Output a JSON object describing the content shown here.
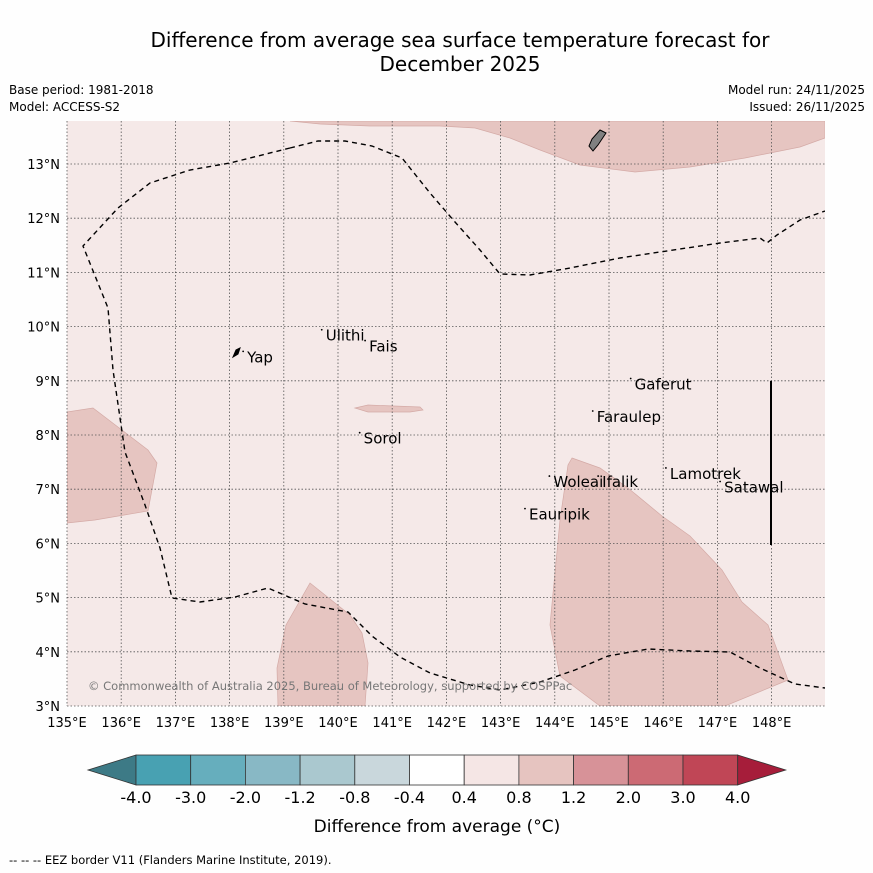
{
  "title_line1": "Difference from average sea surface temperature forecast for",
  "title_line2": "December 2025",
  "meta": {
    "base_period": "Base period: 1981-2018",
    "model": "Model: ACCESS-S2",
    "model_run": "Model run: 24/11/2025",
    "issued": "Issued: 26/11/2025"
  },
  "map": {
    "lon_range": [
      135,
      149
    ],
    "lat_range": [
      3,
      13.8
    ],
    "x_ticks": [
      {
        "lon": 135,
        "label": "135°E"
      },
      {
        "lon": 136,
        "label": "136°E"
      },
      {
        "lon": 137,
        "label": "137°E"
      },
      {
        "lon": 138,
        "label": "138°E"
      },
      {
        "lon": 139,
        "label": "139°E"
      },
      {
        "lon": 140,
        "label": "140°E"
      },
      {
        "lon": 141,
        "label": "141°E"
      },
      {
        "lon": 142,
        "label": "142°E"
      },
      {
        "lon": 143,
        "label": "143°E"
      },
      {
        "lon": 144,
        "label": "144°E"
      },
      {
        "lon": 145,
        "label": "145°E"
      },
      {
        "lon": 146,
        "label": "146°E"
      },
      {
        "lon": 147,
        "label": "147°E"
      },
      {
        "lon": 148,
        "label": "148°E"
      }
    ],
    "y_ticks": [
      {
        "lat": 3,
        "label": "3°N"
      },
      {
        "lat": 4,
        "label": "4°N"
      },
      {
        "lat": 5,
        "label": "5°N"
      },
      {
        "lat": 6,
        "label": "6°N"
      },
      {
        "lat": 7,
        "label": "7°N"
      },
      {
        "lat": 8,
        "label": "8°N"
      },
      {
        "lat": 9,
        "label": "9°N"
      },
      {
        "lat": 10,
        "label": "10°N"
      },
      {
        "lat": 11,
        "label": "11°N"
      },
      {
        "lat": 12,
        "label": "12°N"
      },
      {
        "lat": 13,
        "label": "13°N"
      }
    ],
    "islands": [
      {
        "name": "Yap",
        "lon": 138.25,
        "lat": 9.45
      },
      {
        "name": "Ulithi",
        "lon": 139.7,
        "lat": 9.85
      },
      {
        "name": "Fais",
        "lon": 140.5,
        "lat": 9.65
      },
      {
        "name": "Gaferut",
        "lon": 145.4,
        "lat": 8.95
      },
      {
        "name": "Faraulep",
        "lon": 144.7,
        "lat": 8.35
      },
      {
        "name": "Sorol",
        "lon": 140.4,
        "lat": 7.95
      },
      {
        "name": "Woleai",
        "lon": 143.9,
        "lat": 7.15
      },
      {
        "name": "Ifalik",
        "lon": 144.8,
        "lat": 7.15
      },
      {
        "name": "Lamotrek",
        "lon": 146.05,
        "lat": 7.3
      },
      {
        "name": "Satawal",
        "lon": 147.05,
        "lat": 7.05
      },
      {
        "name": "Eauripik",
        "lon": 143.45,
        "lat": 6.55
      }
    ],
    "copyright": "© Commonwealth of Australia 2025, Bureau of Meteorology, supported by COSPPac"
  },
  "colorbar": {
    "labels": [
      "-4.0",
      "-3.0",
      "-2.0",
      "-1.2",
      "-0.8",
      "-0.4",
      "0.4",
      "0.8",
      "1.2",
      "2.0",
      "3.0",
      "4.0"
    ],
    "colors": [
      "#48a1b2",
      "#66aebd",
      "#88b8c5",
      "#aac8cf",
      "#c9d7dc",
      "#ffffff",
      "#f5e6e5",
      "#e6c4c0",
      "#d79298",
      "#cc6a74",
      "#c04656"
    ],
    "low_extend_color": "#3d7a86",
    "high_extend_color": "#a61d3a",
    "label": "Difference from average (°C)"
  },
  "footer": "-- -- -- EEZ border V11 (Flanders Marine Institute, 2019).",
  "colors": {
    "background_anomaly": "#f5e9e8",
    "warm_patch": "#e6c5c1"
  }
}
